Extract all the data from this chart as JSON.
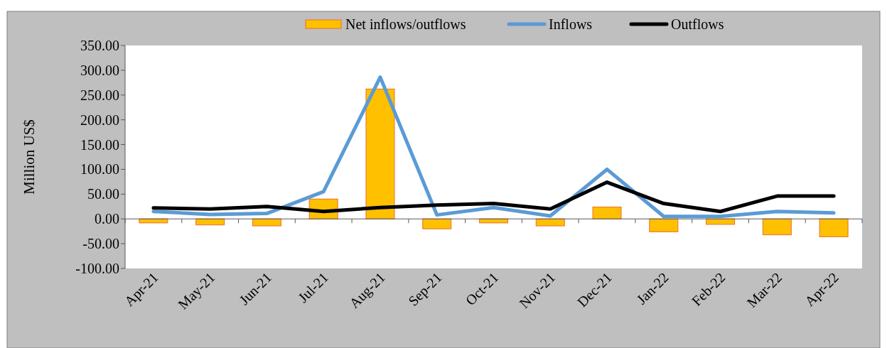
{
  "chart_data": {
    "type": "bar",
    "ylabel": "Million US$",
    "categories": [
      "Apr-21",
      "May-21",
      "Jun-21",
      "Jul-21",
      "Aug-21",
      "Sep-21",
      "Oct-21",
      "Nov-21",
      "Dec-21",
      "Jan-22",
      "Feb-22",
      "Mar-22",
      "Apr-22"
    ],
    "series": [
      {
        "name": "Net inflows/outflows",
        "color": "#ffc000",
        "values": [
          -8,
          -12,
          -14,
          40,
          262,
          -20,
          -8,
          -14,
          24,
          -26,
          -11,
          -32,
          -36
        ]
      },
      {
        "name": "Inflows",
        "type": "line",
        "color": "#5b9bd5",
        "values": [
          15,
          9,
          11,
          55,
          286,
          8,
          23,
          6,
          100,
          5,
          5,
          15,
          12
        ]
      },
      {
        "name": "Outflows",
        "type": "line",
        "color": "#000000",
        "values": [
          22,
          20,
          25,
          15,
          23,
          28,
          31,
          20,
          74,
          31,
          15,
          46,
          46
        ]
      }
    ],
    "ylim": [
      -100,
      350
    ],
    "yticks": [
      {
        "value": -100,
        "label": "-100.00"
      },
      {
        "value": -50,
        "label": "-50.00"
      },
      {
        "value": 0,
        "label": "0.00"
      },
      {
        "value": 50,
        "label": "50.00"
      },
      {
        "value": 100,
        "label": "100.00"
      },
      {
        "value": 150,
        "label": "150.00"
      },
      {
        "value": 200,
        "label": "200.00"
      },
      {
        "value": 250,
        "label": "250.00"
      },
      {
        "value": 300,
        "label": "300.00"
      },
      {
        "value": 350,
        "label": "350.00"
      }
    ],
    "legend": "top"
  }
}
